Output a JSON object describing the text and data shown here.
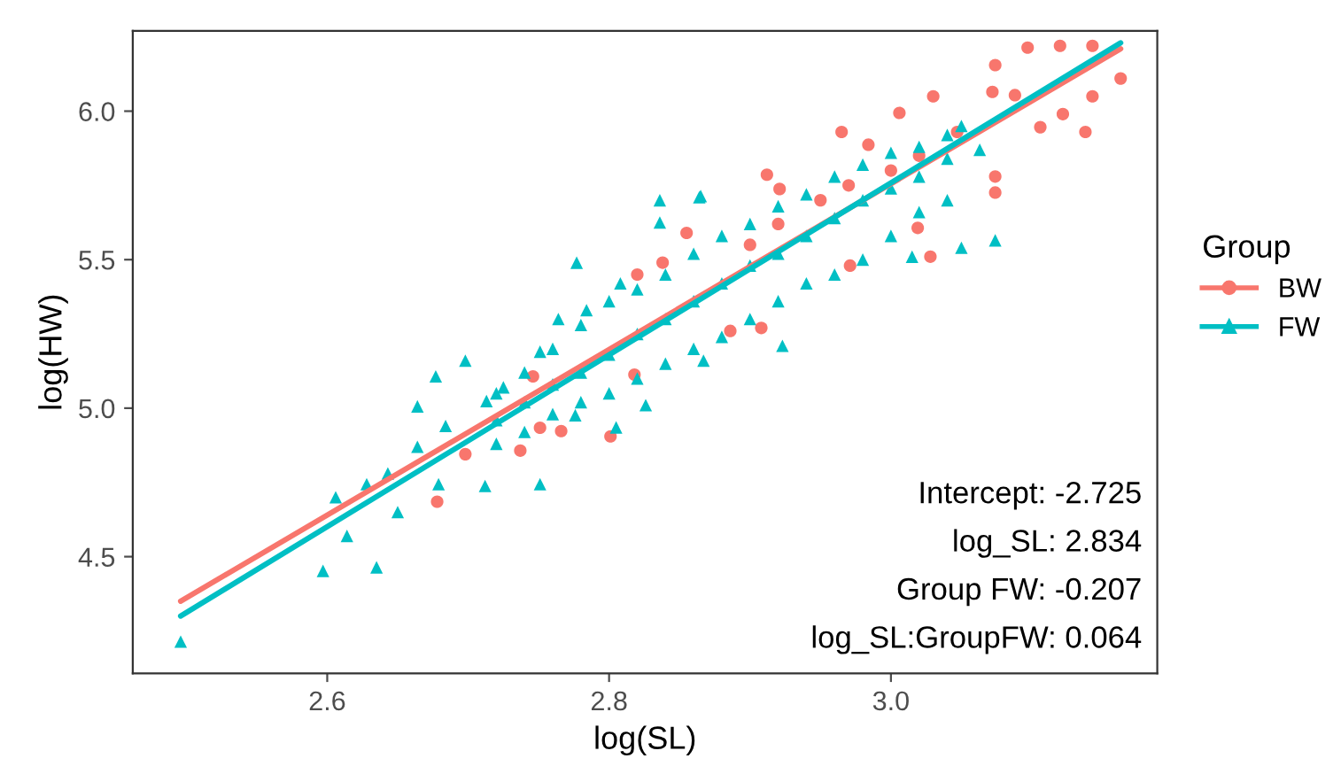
{
  "chart_data": {
    "type": "scatter",
    "xlabel": "log(SL)",
    "ylabel": "log(HW)",
    "legend_title": "Group",
    "legend": "right",
    "grid": false,
    "xlim": [
      2.462,
      3.189
    ],
    "xticks": [
      2.6,
      2.8,
      {
        "value": 3,
        "label": "3.0"
      }
    ],
    "ylim": [
      4.107,
      6.27
    ],
    "yticks": [
      4.5,
      {
        "value": 5,
        "label": "5.0"
      },
      5.5,
      {
        "value": 6,
        "label": "6.0"
      }
    ],
    "series": [
      {
        "name": "BW",
        "type": "scatter",
        "marker": "circle",
        "color": "#f8766d",
        "x": [
          3.097,
          3.12,
          3.143,
          3.163,
          3.143,
          3.074,
          3.072,
          3.03,
          3.006,
          3.074,
          3.074,
          3.106,
          3.122,
          3.047,
          2.984,
          2.965,
          2.912,
          2.921,
          2.908,
          2.886,
          2.958,
          2.971,
          3.028,
          3.019,
          3.088,
          3.138,
          2.855,
          2.838,
          2.82,
          2.746,
          2.766,
          2.801,
          2.737,
          2.698,
          2.678,
          2.751,
          2.818,
          2.9,
          2.95,
          3.0,
          2.92,
          2.97,
          3.02
        ],
        "values": [
          6.214,
          6.22,
          6.22,
          6.11,
          6.05,
          6.155,
          6.065,
          6.05,
          5.994,
          5.726,
          5.78,
          5.946,
          5.99,
          5.93,
          5.887,
          5.93,
          5.786,
          5.738,
          5.27,
          5.26,
          null,
          5.48,
          5.51,
          5.607,
          6.054,
          5.93,
          5.59,
          5.49,
          5.45,
          5.107,
          4.923,
          4.905,
          4.857,
          4.845,
          4.685,
          4.934,
          5.113,
          5.55,
          5.7,
          5.8,
          5.62,
          5.75,
          5.85
        ]
      },
      {
        "name": "FW",
        "type": "scatter",
        "marker": "triangle",
        "color": "#00bfc4",
        "x": [
          2.496,
          2.597,
          2.635,
          2.614,
          2.606,
          2.65,
          2.628,
          2.643,
          2.664,
          2.664,
          2.677,
          2.698,
          2.684,
          2.679,
          2.712,
          2.751,
          2.713,
          2.725,
          2.751,
          2.764,
          2.777,
          2.784,
          2.826,
          2.808,
          2.836,
          2.836,
          2.864,
          2.776,
          2.805,
          2.865,
          3.05,
          3.074,
          3.015,
          2.923,
          2.867,
          3.05,
          3.063,
          2.72,
          2.72,
          2.72,
          2.74,
          2.74,
          2.74,
          2.76,
          2.76,
          2.76,
          2.78,
          2.78,
          2.78,
          2.8,
          2.8,
          2.8,
          2.82,
          2.82,
          2.82,
          2.84,
          2.84,
          2.84,
          2.86,
          2.86,
          2.86,
          2.88,
          2.88,
          2.88,
          2.9,
          2.9,
          2.9,
          2.92,
          2.92,
          2.92,
          2.94,
          2.94,
          2.94,
          2.96,
          2.96,
          2.96,
          2.98,
          2.98,
          2.98,
          3.0,
          3.0,
          3.0,
          3.02,
          3.02,
          3.02,
          3.04,
          3.04,
          3.04
        ],
        "values": [
          4.214,
          4.452,
          4.464,
          4.57,
          4.7,
          4.65,
          4.744,
          4.78,
          4.87,
          5.006,
          5.107,
          5.16,
          4.94,
          4.744,
          4.738,
          4.744,
          5.024,
          5.07,
          5.19,
          5.3,
          5.49,
          5.33,
          5.01,
          5.42,
          5.7,
          5.625,
          5.71,
          4.976,
          4.935,
          5.714,
          5.54,
          5.565,
          5.51,
          5.21,
          5.16,
          5.95,
          5.87,
          5.05,
          4.88,
          4.96,
          5.12,
          4.92,
          5.02,
          5.2,
          4.98,
          5.08,
          5.28,
          5.02,
          5.12,
          5.36,
          5.05,
          5.18,
          5.4,
          5.1,
          5.25,
          5.45,
          5.15,
          5.3,
          5.52,
          5.2,
          5.36,
          5.58,
          5.24,
          5.42,
          5.62,
          5.3,
          5.48,
          5.68,
          5.36,
          5.52,
          5.72,
          5.42,
          5.58,
          5.78,
          5.45,
          5.64,
          5.82,
          5.5,
          5.7,
          5.86,
          5.58,
          5.74,
          5.88,
          5.66,
          5.78,
          5.92,
          5.7,
          5.84
        ]
      },
      {
        "type": "line",
        "color": "#f8766d",
        "x": [
          2.496,
          3.163
        ],
        "values": [
          4.35,
          6.21
        ]
      },
      {
        "type": "line",
        "color": "#00bfc4",
        "x": [
          2.496,
          3.163
        ],
        "values": [
          4.3,
          6.23
        ]
      }
    ],
    "annotations": [
      "Intercept: -2.725",
      "log_SL: 2.834",
      "Group FW: -0.207",
      "log_SL:GroupFW: 0.064"
    ]
  }
}
